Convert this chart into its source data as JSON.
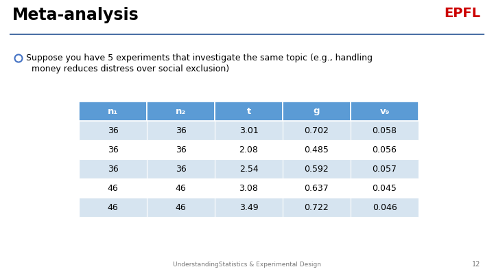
{
  "title": "Meta-analysis",
  "epfl_text": "EPFL",
  "epfl_color": "#CC0000",
  "title_color": "#000000",
  "line_color": "#4A6FA5",
  "bullet_text_line1": "Suppose you have 5 experiments that investigate the same topic (e.g., handling",
  "bullet_text_line2": "  money reduces distress over social exclusion)",
  "bullet_color": "#4472C4",
  "table_header": [
    "n₁",
    "n₂",
    "t",
    "g",
    "v₉"
  ],
  "table_header_bg": "#5B9BD5",
  "table_header_text": "#FFFFFF",
  "table_row_bg_odd": "#D6E4F0",
  "table_row_bg_even": "#FFFFFF",
  "table_data": [
    [
      "36",
      "36",
      "3.01",
      "0.702",
      "0.058"
    ],
    [
      "36",
      "36",
      "2.08",
      "0.485",
      "0.056"
    ],
    [
      "36",
      "36",
      "2.54",
      "0.592",
      "0.057"
    ],
    [
      "46",
      "46",
      "3.08",
      "0.637",
      "0.045"
    ],
    [
      "46",
      "46",
      "3.49",
      "0.722",
      "0.046"
    ]
  ],
  "footer_text": "UnderstandingStatistics & Experimental Design",
  "page_number": "12",
  "background_color": "#FFFFFF",
  "table_text_color": "#000000"
}
